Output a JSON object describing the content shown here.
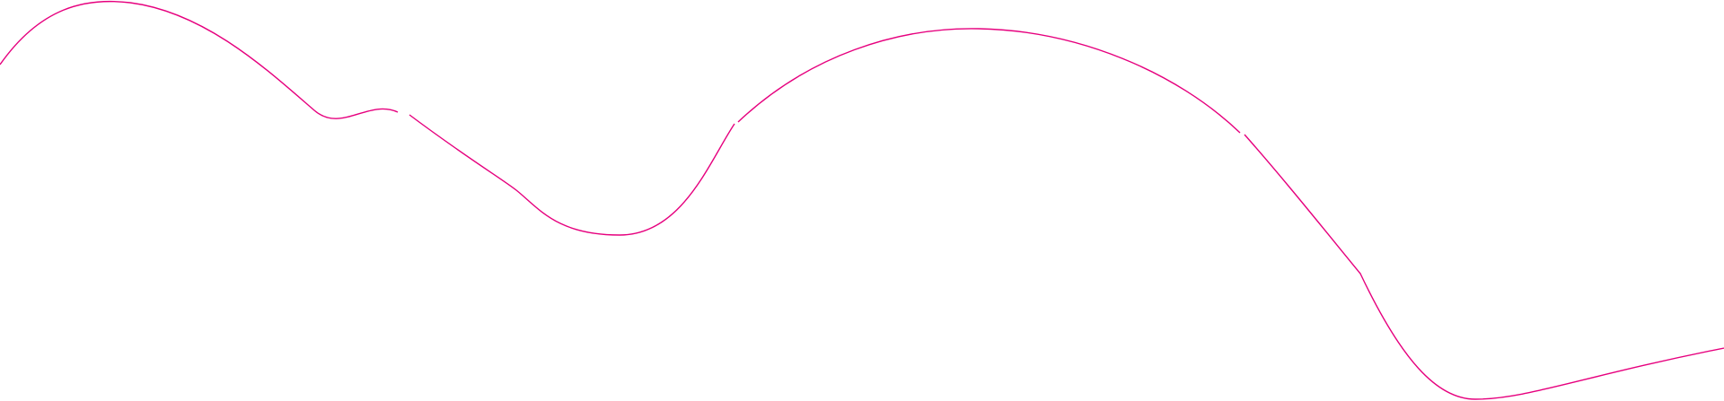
{
  "decoration": {
    "stroke_color": "#e6007e",
    "shape": "wavy-line"
  }
}
